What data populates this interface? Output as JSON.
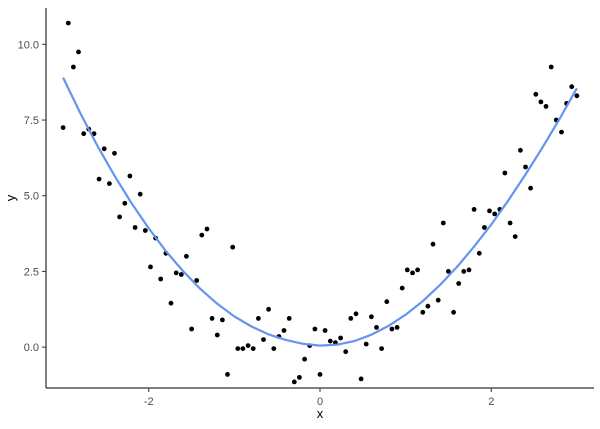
{
  "chart_data": {
    "type": "scatter",
    "title": "",
    "xlabel": "x",
    "ylabel": "y",
    "xlim": [
      -3.2,
      3.2
    ],
    "ylim": [
      -1.35,
      11.2
    ],
    "x_ticks": [
      {
        "value": -2,
        "label": "-2"
      },
      {
        "value": 0,
        "label": "0"
      },
      {
        "value": 2,
        "label": "2"
      }
    ],
    "y_ticks": [
      {
        "value": 0,
        "label": "0.0"
      },
      {
        "value": 2.5,
        "label": "2.5"
      },
      {
        "value": 5,
        "label": "5.0"
      },
      {
        "value": 7.5,
        "label": "7.5"
      },
      {
        "value": 10,
        "label": "10.0"
      }
    ],
    "grid": false,
    "points": {
      "color": "#000000",
      "x": [
        -3.0,
        -2.94,
        -2.88,
        -2.82,
        -2.76,
        -2.7,
        -2.64,
        -2.58,
        -2.52,
        -2.46,
        -2.4,
        -2.34,
        -2.28,
        -2.22,
        -2.16,
        -2.1,
        -2.04,
        -1.98,
        -1.92,
        -1.86,
        -1.8,
        -1.74,
        -1.68,
        -1.62,
        -1.56,
        -1.5,
        -1.44,
        -1.38,
        -1.32,
        -1.26,
        -1.2,
        -1.14,
        -1.08,
        -1.02,
        -0.96,
        -0.9,
        -0.84,
        -0.78,
        -0.72,
        -0.66,
        -0.6,
        -0.54,
        -0.48,
        -0.42,
        -0.36,
        -0.3,
        -0.24,
        -0.18,
        -0.12,
        -0.06,
        0.0,
        0.06,
        0.12,
        0.18,
        0.24,
        0.3,
        0.36,
        0.42,
        0.48,
        0.54,
        0.6,
        0.66,
        0.72,
        0.78,
        0.84,
        0.9,
        0.96,
        1.02,
        1.08,
        1.14,
        1.2,
        1.26,
        1.32,
        1.38,
        1.44,
        1.5,
        1.56,
        1.62,
        1.68,
        1.74,
        1.8,
        1.86,
        1.92,
        1.98,
        2.04,
        2.1,
        2.16,
        2.22,
        2.28,
        2.34,
        2.4,
        2.46,
        2.52,
        2.58,
        2.64,
        2.7,
        2.76,
        2.82,
        2.88,
        2.94,
        3.0
      ],
      "y": [
        7.25,
        10.7,
        9.25,
        9.75,
        7.05,
        7.2,
        7.05,
        5.55,
        6.55,
        5.4,
        6.4,
        4.3,
        4.75,
        5.65,
        3.95,
        5.05,
        3.85,
        2.65,
        3.6,
        2.25,
        3.1,
        1.45,
        2.45,
        2.4,
        3.0,
        0.6,
        2.2,
        3.7,
        3.9,
        0.95,
        0.4,
        0.9,
        -0.9,
        3.3,
        -0.05,
        -0.05,
        0.05,
        -0.05,
        0.95,
        0.25,
        1.25,
        -0.05,
        0.35,
        0.55,
        0.95,
        -1.15,
        -1.0,
        -0.4,
        0.05,
        0.6,
        -0.9,
        0.55,
        0.2,
        0.15,
        0.3,
        -0.15,
        0.95,
        1.1,
        -1.05,
        0.1,
        1.0,
        0.65,
        -0.05,
        1.5,
        0.6,
        0.65,
        1.95,
        2.55,
        2.45,
        2.55,
        1.15,
        1.35,
        3.4,
        1.55,
        4.1,
        2.5,
        1.15,
        2.1,
        2.5,
        2.55,
        4.55,
        3.1,
        3.95,
        4.5,
        4.4,
        4.55,
        5.75,
        4.1,
        3.65,
        6.5,
        5.95,
        5.25,
        8.35,
        8.1,
        7.95,
        9.25,
        7.5,
        7.1,
        8.05,
        8.6,
        8.3
      ]
    },
    "fit_line": {
      "color": "#6495ed",
      "x": [
        -3.0,
        -2.8,
        -2.6,
        -2.4,
        -2.2,
        -2.0,
        -1.8,
        -1.6,
        -1.4,
        -1.2,
        -1.0,
        -0.8,
        -0.6,
        -0.4,
        -0.2,
        0.0,
        0.2,
        0.4,
        0.6,
        0.8,
        1.0,
        1.2,
        1.4,
        1.6,
        1.8,
        2.0,
        2.2,
        2.4,
        2.6,
        2.8,
        3.0
      ],
      "y": [
        8.9,
        7.73,
        6.65,
        5.66,
        4.75,
        3.92,
        3.17,
        2.51,
        1.93,
        1.43,
        1.01,
        0.68,
        0.42,
        0.24,
        0.11,
        0.05,
        0.08,
        0.2,
        0.41,
        0.7,
        1.07,
        1.52,
        2.05,
        2.65,
        3.32,
        4.05,
        4.85,
        5.7,
        6.6,
        7.55,
        8.55
      ]
    }
  }
}
